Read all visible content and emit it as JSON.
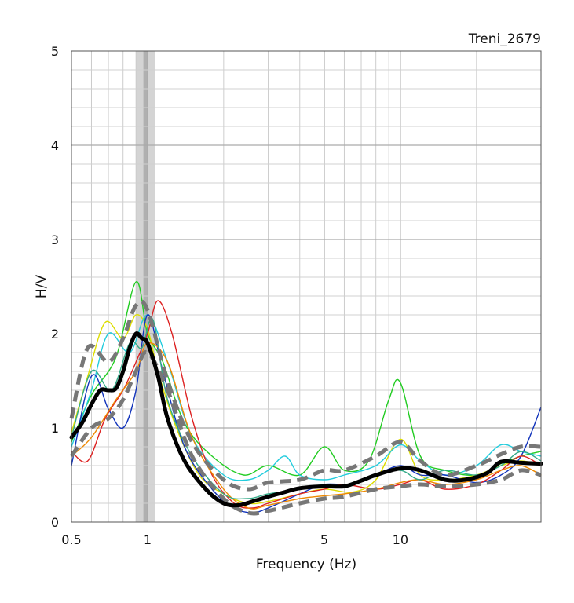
{
  "chart_data": {
    "type": "line",
    "title": "Treni_2679",
    "xlabel": "Frequency (Hz)",
    "ylabel": "H/V",
    "x_scale": "log",
    "xlim": [
      0.5,
      36
    ],
    "ylim": [
      0,
      5
    ],
    "x_tick_labels": [
      {
        "value": 0.5,
        "label": "0.5"
      },
      {
        "value": 1,
        "label": "1"
      },
      {
        "value": 5,
        "label": "5"
      },
      {
        "value": 10,
        "label": "10"
      }
    ],
    "y_tick_labels": [
      {
        "value": 0,
        "label": "0"
      },
      {
        "value": 1,
        "label": "1"
      },
      {
        "value": 2,
        "label": "2"
      },
      {
        "value": 3,
        "label": "3"
      },
      {
        "value": 4,
        "label": "4"
      },
      {
        "value": 5,
        "label": "5"
      }
    ],
    "grid": true,
    "peak_band": {
      "from": 0.9,
      "to": 1.07,
      "center": 0.98
    },
    "series": [
      {
        "color": "#22cc22",
        "x": [
          0.5,
          0.6,
          0.75,
          0.9,
          1.0,
          1.15,
          1.4,
          1.8,
          2.4,
          3.0,
          4.0,
          5.0,
          6.0,
          7.5,
          9.0,
          10.0,
          12.0,
          15.0,
          20.0,
          25.0,
          30.0,
          36.0
        ],
        "y": [
          0.85,
          1.35,
          1.75,
          2.55,
          2.0,
          1.7,
          1.05,
          0.7,
          0.5,
          0.6,
          0.5,
          0.8,
          0.55,
          0.65,
          1.3,
          1.48,
          0.7,
          0.55,
          0.5,
          0.62,
          0.7,
          0.75
        ]
      },
      {
        "color": "#dddd00",
        "x": [
          0.5,
          0.58,
          0.68,
          0.8,
          0.9,
          1.0,
          1.1,
          1.3,
          1.6,
          2.0,
          2.5,
          3.0,
          4.0,
          5.0,
          6.5,
          8.0,
          10.0,
          12.0,
          15.0,
          20.0,
          25.0,
          30.0,
          36.0
        ],
        "y": [
          0.95,
          1.55,
          2.12,
          1.95,
          2.2,
          2.05,
          1.6,
          1.0,
          0.5,
          0.3,
          0.2,
          0.22,
          0.3,
          0.35,
          0.32,
          0.45,
          0.88,
          0.5,
          0.45,
          0.5,
          0.6,
          0.65,
          0.6
        ]
      },
      {
        "color": "#22ccdd",
        "x": [
          0.5,
          0.6,
          0.7,
          0.85,
          1.0,
          1.2,
          1.5,
          2.0,
          2.5,
          3.0,
          3.5,
          4.0,
          5.0,
          6.0,
          8.0,
          10.0,
          12.0,
          15.0,
          20.0,
          25.0,
          30.0,
          36.0
        ],
        "y": [
          0.8,
          1.4,
          2.0,
          1.8,
          2.2,
          1.7,
          0.9,
          0.5,
          0.45,
          0.55,
          0.7,
          0.5,
          0.45,
          0.5,
          0.6,
          0.82,
          0.65,
          0.5,
          0.6,
          0.82,
          0.75,
          0.7
        ]
      },
      {
        "color": "#1133bb",
        "x": [
          0.5,
          0.6,
          0.7,
          0.8,
          0.9,
          1.0,
          1.15,
          1.4,
          1.8,
          2.2,
          2.6,
          3.0,
          4.0,
          5.0,
          6.5,
          8.0,
          10.0,
          12.0,
          15.0,
          20.0,
          25.0,
          30.0,
          36.0
        ],
        "y": [
          0.6,
          1.55,
          1.2,
          1.0,
          1.4,
          2.2,
          1.6,
          0.8,
          0.35,
          0.15,
          0.1,
          0.15,
          0.3,
          0.4,
          0.4,
          0.5,
          0.6,
          0.5,
          0.5,
          0.42,
          0.5,
          0.7,
          1.22
        ]
      },
      {
        "color": "#dd2222",
        "x": [
          0.5,
          0.58,
          0.68,
          0.8,
          0.9,
          1.0,
          1.1,
          1.25,
          1.5,
          1.8,
          2.2,
          2.6,
          3.0,
          4.0,
          5.0,
          6.0,
          8.0,
          10.0,
          12.0,
          15.0,
          20.0,
          25.0,
          30.0,
          36.0
        ],
        "y": [
          0.75,
          0.65,
          1.1,
          1.4,
          1.7,
          2.0,
          2.35,
          2.0,
          1.1,
          0.5,
          0.2,
          0.15,
          0.2,
          0.3,
          0.35,
          0.4,
          0.35,
          0.4,
          0.45,
          0.35,
          0.4,
          0.55,
          0.7,
          0.6
        ]
      },
      {
        "color": "#ee8800",
        "x": [
          0.5,
          0.6,
          0.75,
          0.9,
          1.0,
          1.2,
          1.5,
          2.0,
          2.5,
          3.0,
          4.0,
          5.0,
          6.0,
          8.0,
          10.0,
          12.0,
          15.0,
          20.0,
          25.0,
          30.0,
          36.0
        ],
        "y": [
          0.7,
          0.9,
          1.3,
          1.6,
          1.9,
          1.7,
          0.9,
          0.35,
          0.15,
          0.18,
          0.25,
          0.28,
          0.3,
          0.35,
          0.42,
          0.45,
          0.4,
          0.45,
          0.55,
          0.6,
          0.5
        ]
      },
      {
        "color": "#33aa88",
        "x": [
          0.5,
          0.6,
          0.72,
          0.85,
          0.95,
          1.05,
          1.2,
          1.5,
          2.0,
          2.5,
          3.0,
          4.0,
          5.0,
          6.0,
          8.0,
          10.0,
          12.0,
          15.0,
          20.0,
          25.0,
          30.0,
          36.0
        ],
        "y": [
          0.9,
          1.6,
          1.4,
          1.9,
          1.85,
          2.15,
          1.3,
          0.7,
          0.3,
          0.25,
          0.3,
          0.35,
          0.4,
          0.38,
          0.5,
          0.55,
          0.45,
          0.55,
          0.5,
          0.6,
          0.75,
          0.65
        ]
      },
      {
        "color": "#777777",
        "dashed": true,
        "width": 5,
        "x": [
          0.5,
          0.58,
          0.7,
          0.8,
          0.9,
          1.0,
          1.2,
          1.5,
          2.0,
          2.5,
          3.0,
          4.0,
          5.0,
          6.0,
          8.0,
          10.0,
          12.0,
          15.0,
          20.0,
          25.0,
          30.0,
          36.0
        ],
        "y": [
          1.1,
          1.85,
          1.7,
          1.95,
          2.3,
          2.25,
          1.5,
          0.85,
          0.45,
          0.35,
          0.42,
          0.45,
          0.55,
          0.55,
          0.7,
          0.85,
          0.65,
          0.5,
          0.6,
          0.72,
          0.8,
          0.8
        ]
      },
      {
        "color": "#777777",
        "dashed": true,
        "width": 5,
        "x": [
          0.5,
          0.6,
          0.7,
          0.8,
          0.9,
          1.0,
          1.2,
          1.5,
          2.0,
          2.5,
          3.0,
          4.0,
          5.0,
          6.0,
          8.0,
          10.0,
          12.0,
          15.0,
          20.0,
          25.0,
          30.0,
          36.0
        ],
        "y": [
          0.7,
          1.0,
          1.1,
          1.3,
          1.6,
          1.8,
          1.4,
          0.7,
          0.25,
          0.1,
          0.12,
          0.2,
          0.25,
          0.27,
          0.35,
          0.38,
          0.4,
          0.38,
          0.4,
          0.45,
          0.55,
          0.5
        ]
      },
      {
        "color": "#000000",
        "width": 5,
        "x": [
          0.5,
          0.55,
          0.6,
          0.65,
          0.7,
          0.75,
          0.8,
          0.85,
          0.9,
          0.95,
          1.0,
          1.1,
          1.2,
          1.4,
          1.7,
          2.0,
          2.3,
          2.6,
          3.0,
          3.5,
          4.0,
          5.0,
          6.0,
          7.0,
          8.0,
          10.0,
          12.0,
          15.0,
          18.0,
          22.0,
          25.0,
          30.0,
          36.0
        ],
        "y": [
          0.9,
          1.05,
          1.25,
          1.4,
          1.4,
          1.42,
          1.6,
          1.85,
          2.0,
          1.95,
          1.9,
          1.55,
          1.1,
          0.65,
          0.35,
          0.2,
          0.18,
          0.22,
          0.27,
          0.32,
          0.36,
          0.38,
          0.38,
          0.44,
          0.5,
          0.57,
          0.55,
          0.45,
          0.45,
          0.52,
          0.64,
          0.63,
          0.62
        ]
      }
    ]
  }
}
